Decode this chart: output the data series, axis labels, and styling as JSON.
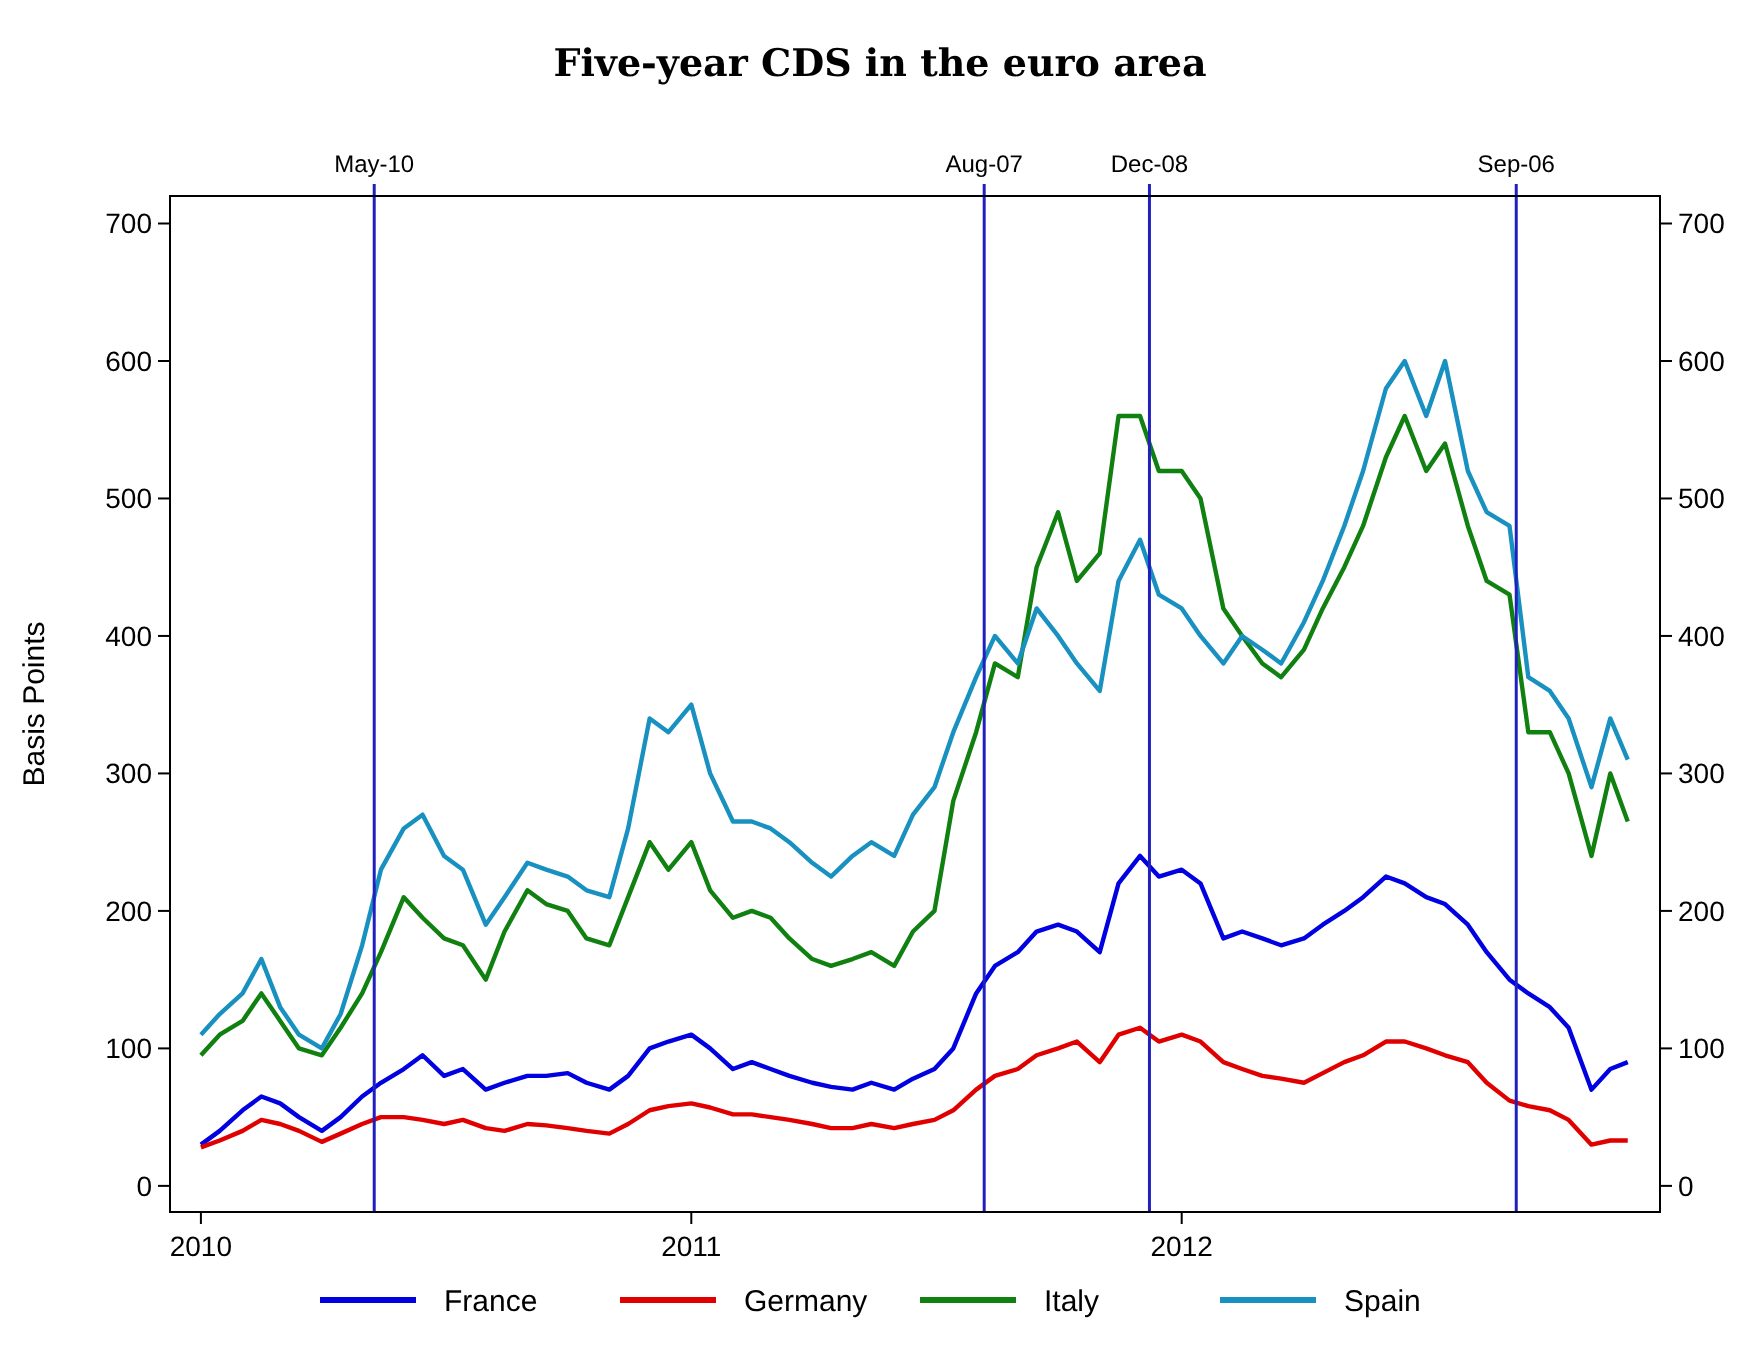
{
  "chart_data": {
    "type": "line",
    "title": "Five-year CDS in the euro area",
    "ylabel": "Basis Points",
    "x": [
      "2010-01-01",
      "2010-01-15",
      "2010-02-01",
      "2010-02-15",
      "2010-03-01",
      "2010-03-15",
      "2010-04-01",
      "2010-04-15",
      "2010-05-01",
      "2010-05-15",
      "2010-06-01",
      "2010-06-15",
      "2010-07-01",
      "2010-07-15",
      "2010-08-01",
      "2010-08-15",
      "2010-09-01",
      "2010-09-15",
      "2010-10-01",
      "2010-10-15",
      "2010-11-01",
      "2010-11-15",
      "2010-12-01",
      "2010-12-15",
      "2011-01-01",
      "2011-01-15",
      "2011-02-01",
      "2011-02-15",
      "2011-03-01",
      "2011-03-15",
      "2011-04-01",
      "2011-04-15",
      "2011-05-01",
      "2011-05-15",
      "2011-06-01",
      "2011-06-15",
      "2011-07-01",
      "2011-07-15",
      "2011-08-01",
      "2011-08-15",
      "2011-09-01",
      "2011-09-15",
      "2011-10-01",
      "2011-10-15",
      "2011-11-01",
      "2011-11-15",
      "2011-12-01",
      "2011-12-15",
      "2012-01-01",
      "2012-01-15",
      "2012-02-01",
      "2012-02-15",
      "2012-03-01",
      "2012-03-15",
      "2012-04-01",
      "2012-04-15",
      "2012-05-01",
      "2012-05-15",
      "2012-06-01",
      "2012-06-15",
      "2012-07-01",
      "2012-07-15",
      "2012-08-01",
      "2012-08-15",
      "2012-09-01",
      "2012-09-15",
      "2012-10-01",
      "2012-10-15",
      "2012-11-01",
      "2012-11-15",
      "2012-11-28"
    ],
    "series": [
      {
        "name": "France",
        "color": "#0000e0",
        "values": [
          30,
          40,
          55,
          65,
          60,
          50,
          40,
          50,
          65,
          75,
          85,
          95,
          80,
          85,
          70,
          75,
          80,
          80,
          82,
          75,
          70,
          80,
          100,
          105,
          110,
          100,
          85,
          90,
          85,
          80,
          75,
          72,
          70,
          75,
          70,
          78,
          85,
          100,
          140,
          160,
          170,
          185,
          190,
          185,
          170,
          220,
          240,
          225,
          230,
          220,
          180,
          185,
          180,
          175,
          180,
          190,
          200,
          210,
          225,
          220,
          210,
          205,
          190,
          170,
          150,
          140,
          130,
          115,
          70,
          85,
          90
        ]
      },
      {
        "name": "Germany",
        "color": "#e00000",
        "values": [
          28,
          33,
          40,
          48,
          45,
          40,
          32,
          38,
          45,
          50,
          50,
          48,
          45,
          48,
          42,
          40,
          45,
          44,
          42,
          40,
          38,
          45,
          55,
          58,
          60,
          57,
          52,
          52,
          50,
          48,
          45,
          42,
          42,
          45,
          42,
          45,
          48,
          55,
          70,
          80,
          85,
          95,
          100,
          105,
          90,
          110,
          115,
          105,
          110,
          105,
          90,
          85,
          80,
          78,
          75,
          82,
          90,
          95,
          105,
          105,
          100,
          95,
          90,
          75,
          62,
          58,
          55,
          48,
          30,
          33,
          33
        ]
      },
      {
        "name": "Italy",
        "color": "#108010",
        "values": [
          95,
          110,
          120,
          140,
          120,
          100,
          95,
          115,
          140,
          170,
          210,
          195,
          180,
          175,
          150,
          185,
          215,
          205,
          200,
          180,
          175,
          210,
          250,
          230,
          250,
          215,
          195,
          200,
          195,
          180,
          165,
          160,
          165,
          170,
          160,
          185,
          200,
          280,
          330,
          380,
          370,
          450,
          490,
          440,
          460,
          560,
          560,
          520,
          520,
          500,
          420,
          400,
          380,
          370,
          390,
          420,
          450,
          480,
          530,
          560,
          520,
          540,
          480,
          440,
          430,
          330,
          330,
          300,
          240,
          300,
          265
        ]
      },
      {
        "name": "Spain",
        "color": "#1890c0",
        "values": [
          110,
          125,
          140,
          165,
          130,
          110,
          100,
          125,
          175,
          230,
          260,
          270,
          240,
          230,
          190,
          210,
          235,
          230,
          225,
          215,
          210,
          260,
          340,
          330,
          350,
          300,
          265,
          265,
          260,
          250,
          235,
          225,
          240,
          250,
          240,
          270,
          290,
          330,
          370,
          400,
          380,
          420,
          400,
          380,
          360,
          440,
          470,
          430,
          420,
          400,
          380,
          400,
          390,
          380,
          410,
          440,
          480,
          520,
          580,
          600,
          560,
          600,
          520,
          490,
          480,
          370,
          360,
          340,
          290,
          340,
          310
        ]
      }
    ],
    "xlim": [
      "2009-12-09",
      "2012-12-22"
    ],
    "xticks": [
      "2010",
      "2011",
      "2012"
    ],
    "ylim": [
      -19,
      720
    ],
    "yticks": [
      0,
      100,
      200,
      300,
      400,
      500,
      600,
      700
    ],
    "y2lim": [
      -19,
      720
    ],
    "y2ticks": [
      0,
      100,
      200,
      300,
      400,
      500,
      600,
      700
    ],
    "ref_lines": [
      {
        "axis": "x",
        "value": "2010-05-10",
        "label": "May-10",
        "color": "#2020c0"
      },
      {
        "axis": "x",
        "value": "2011-08-07",
        "label": "Aug-07",
        "color": "#2020c0"
      },
      {
        "axis": "x",
        "value": "2011-12-08",
        "label": "Dec-08",
        "color": "#2020c0"
      },
      {
        "axis": "x",
        "value": "2012-09-06",
        "label": "Sep-06",
        "color": "#2020c0"
      }
    ],
    "grid": false,
    "legend": "bottom",
    "line_style": "solid",
    "marker": "none"
  }
}
